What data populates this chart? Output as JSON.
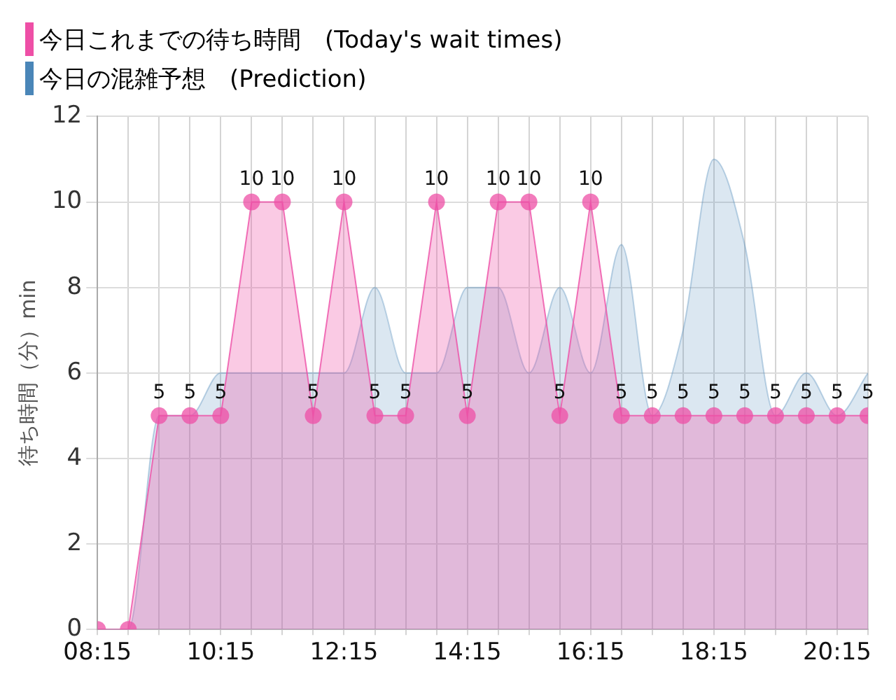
{
  "chart_data": {
    "type": "area",
    "ylabel": "待ち時間（分）min",
    "x": [
      8.25,
      8.75,
      9.25,
      9.75,
      10.25,
      10.75,
      11.25,
      11.75,
      12.25,
      12.75,
      13.25,
      13.75,
      14.25,
      14.75,
      15.25,
      15.75,
      16.25,
      16.75,
      17.25,
      17.75,
      18.25,
      18.75,
      19.25,
      19.75,
      20.25,
      20.75
    ],
    "series": [
      {
        "name": "今日これまでの待ち時間　(Today's wait times)",
        "color": "#ee4fa6",
        "marker": "circle",
        "values": [
          0,
          0,
          5,
          5,
          5,
          10,
          10,
          5,
          10,
          5,
          5,
          10,
          5,
          10,
          10,
          5,
          10,
          5,
          5,
          5,
          5,
          5,
          5,
          5,
          5,
          5
        ],
        "value_labels": [
          null,
          null,
          "5",
          "5",
          "5",
          "10",
          "10",
          "5",
          "10",
          "5",
          "5",
          "10",
          "5",
          "10",
          "10",
          "5",
          "10",
          "5",
          "5",
          "5",
          "5",
          "5",
          "5",
          "5",
          "5",
          "5"
        ]
      },
      {
        "name": "今日の混雑予想　(Prediction)",
        "color": "#4a86b8",
        "marker": "none",
        "values": [
          0,
          0,
          5,
          5,
          6,
          6,
          6,
          6,
          6,
          8,
          6,
          6,
          8,
          8,
          6,
          8,
          6,
          9,
          5,
          7,
          11,
          9,
          5,
          6,
          5,
          6
        ]
      }
    ],
    "xlim": [
      8.25,
      20.75
    ],
    "xticks": [
      {
        "value": 8.25,
        "label": "08:15"
      },
      {
        "value": 8.75,
        "label": null
      },
      {
        "value": 9.25,
        "label": null
      },
      {
        "value": 9.75,
        "label": null
      },
      {
        "value": 10.25,
        "label": "10:15"
      },
      {
        "value": 10.75,
        "label": null
      },
      {
        "value": 11.25,
        "label": null
      },
      {
        "value": 11.75,
        "label": null
      },
      {
        "value": 12.25,
        "label": "12:15"
      },
      {
        "value": 12.75,
        "label": null
      },
      {
        "value": 13.25,
        "label": null
      },
      {
        "value": 13.75,
        "label": null
      },
      {
        "value": 14.25,
        "label": "14:15"
      },
      {
        "value": 14.75,
        "label": null
      },
      {
        "value": 15.25,
        "label": null
      },
      {
        "value": 15.75,
        "label": null
      },
      {
        "value": 16.25,
        "label": "16:15"
      },
      {
        "value": 16.75,
        "label": null
      },
      {
        "value": 17.25,
        "label": null
      },
      {
        "value": 17.75,
        "label": null
      },
      {
        "value": 18.25,
        "label": "18:15"
      },
      {
        "value": 18.75,
        "label": null
      },
      {
        "value": 19.25,
        "label": null
      },
      {
        "value": 19.75,
        "label": null
      },
      {
        "value": 20.25,
        "label": "20:15"
      },
      {
        "value": 20.75,
        "label": null
      }
    ],
    "ylim": [
      0,
      12
    ],
    "yticks": [
      0,
      2,
      4,
      6,
      8,
      10,
      12
    ],
    "grid": true,
    "legend": "top left"
  }
}
